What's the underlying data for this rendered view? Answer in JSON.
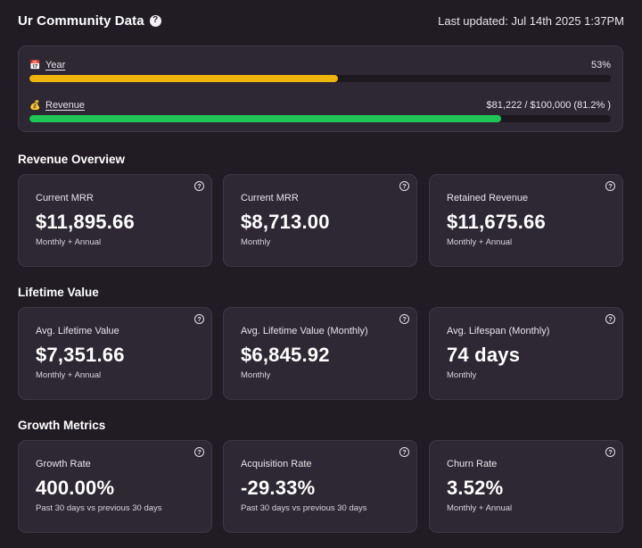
{
  "header": {
    "title": "Ur Community Data",
    "help_icon": "question-circle-icon",
    "last_updated": "Last updated: Jul 14th 2025 1:37PM"
  },
  "progress": {
    "year": {
      "label": "Year",
      "icon": "calendar-icon",
      "glyph": "📅",
      "value_text": "53%",
      "fraction": 0.53,
      "color": "#efb50c"
    },
    "revenue": {
      "label": "Revenue",
      "icon": "money-bag-icon",
      "glyph": "💰",
      "value_text": "$81,222 / $100,000 (81.2% )",
      "fraction": 0.812,
      "color": "#1fc655"
    }
  },
  "sections": {
    "revenue_overview": {
      "title": "Revenue Overview",
      "cards": [
        {
          "label": "Current MRR",
          "value": "$11,895.66",
          "sub": "Monthly + Annual"
        },
        {
          "label": "Current MRR",
          "value": "$8,713.00",
          "sub": "Monthly"
        },
        {
          "label": "Retained Revenue",
          "value": "$11,675.66",
          "sub": "Monthly + Annual"
        }
      ]
    },
    "lifetime_value": {
      "title": "Lifetime Value",
      "cards": [
        {
          "label": "Avg. Lifetime Value",
          "value": "$7,351.66",
          "sub": "Monthly + Annual"
        },
        {
          "label": "Avg. Lifetime Value (Monthly)",
          "value": "$6,845.92",
          "sub": "Monthly"
        },
        {
          "label": "Avg. Lifespan (Monthly)",
          "value": "74 days",
          "sub": "Monthly"
        }
      ]
    },
    "growth_metrics": {
      "title": "Growth Metrics",
      "cards": [
        {
          "label": "Growth Rate",
          "value": "400.00%",
          "sub": "Past 30 days vs previous 30 days"
        },
        {
          "label": "Acquisition Rate",
          "value": "-29.33%",
          "sub": "Past 30 days vs previous 30 days"
        },
        {
          "label": "Churn Rate",
          "value": "3.52%",
          "sub": "Monthly + Annual"
        }
      ]
    }
  },
  "colors": {
    "background": "#211c24",
    "card": "#2d2833",
    "border": "#3d3843"
  }
}
